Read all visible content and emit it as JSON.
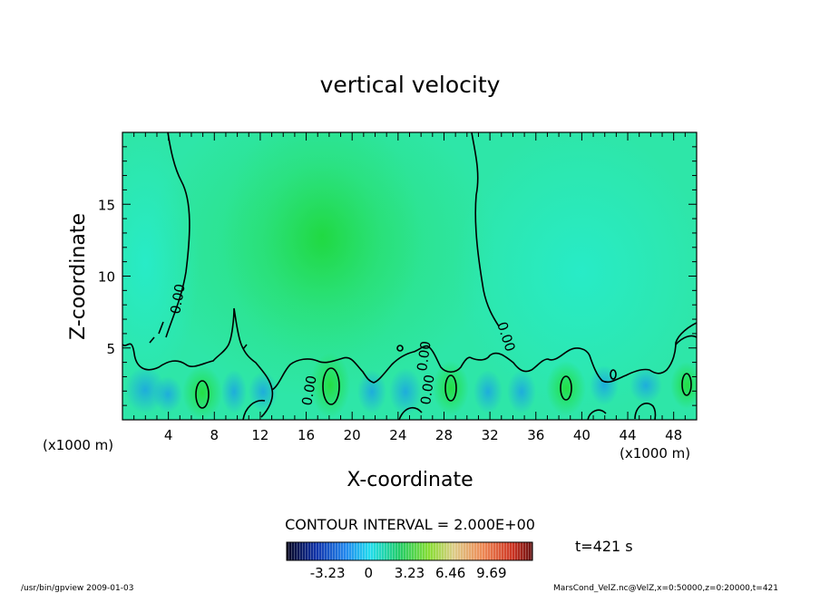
{
  "chart_data": {
    "type": "heatmap",
    "title": "vertical velocity",
    "xlabel": "X-coordinate",
    "ylabel": "Z-coordinate",
    "x_unit_left": "(x1000 m)",
    "x_unit_right": "(x1000 m)",
    "xlim": [
      0,
      50
    ],
    "ylim": [
      0,
      20
    ],
    "x_ticks": [
      "4",
      "8",
      "12",
      "16",
      "20",
      "24",
      "28",
      "32",
      "36",
      "40",
      "44",
      "48"
    ],
    "y_ticks": [
      "5",
      "10",
      "15"
    ],
    "contour_interval_label": "CONTOUR INTERVAL = 2.000E+00",
    "contour_labels": [
      "0.00",
      "0.00",
      "0.00",
      "0.00",
      "0.00"
    ],
    "colorbar_ticks": [
      "-3.23",
      "0",
      "3.23",
      "6.46",
      "9.69"
    ],
    "colorbar_range": [
      -6.46,
      12.92
    ],
    "time_label": "t=421 s",
    "colors": {
      "field_base": "#2ee6a8",
      "positive_green": "#22dd44",
      "negative_blue": "#22bbee",
      "contour_line": "#000000"
    }
  },
  "footer": {
    "left": "/usr/bin/gpview   2009-01-03",
    "right": "MarsCond_VelZ.nc@VelZ,x=0:50000,z=0:20000,t=421"
  }
}
